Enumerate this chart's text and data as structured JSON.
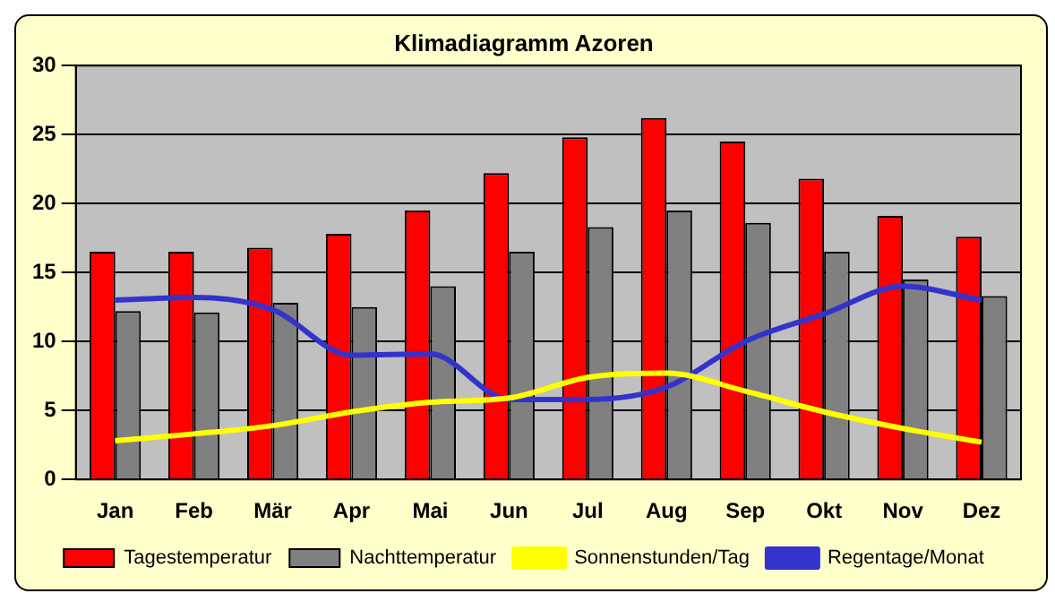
{
  "chart_data": {
    "type": "bar",
    "title": "Klimadiagramm Azoren",
    "categories": [
      "Jan",
      "Feb",
      "Mär",
      "Apr",
      "Mai",
      "Jun",
      "Jul",
      "Aug",
      "Sep",
      "Okt",
      "Nov",
      "Dez"
    ],
    "series": [
      {
        "name": "Tagestemperatur",
        "color": "#ff0000",
        "values": [
          16.5,
          16.5,
          16.8,
          17.8,
          19.5,
          22.2,
          24.8,
          26.2,
          24.5,
          21.8,
          19.1,
          17.6
        ]
      },
      {
        "name": "Nachttemperatur",
        "color": "#808080",
        "values": [
          12.2,
          12.1,
          12.8,
          12.5,
          14,
          16.5,
          18.3,
          19.5,
          18.6,
          16.5,
          14.5,
          13.3
        ]
      },
      {
        "name": "Sonnenstunden/Tag",
        "type": "line",
        "color": "#ffff00",
        "values": [
          2.8,
          3.3,
          3.9,
          4.9,
          5.6,
          5.9,
          7.4,
          7.7,
          6.4,
          4.9,
          3.7,
          2.7
        ]
      },
      {
        "name": "Regentage/Monat",
        "type": "line",
        "color": "#3333cc",
        "values": [
          13,
          13.2,
          12.3,
          9,
          9.1,
          5.8,
          5.8,
          6.7,
          10,
          12,
          14,
          13
        ]
      }
    ],
    "ylim": [
      0,
      30
    ],
    "yticks": [
      0,
      5,
      10,
      15,
      20,
      25,
      30
    ],
    "grid": "y",
    "legend": "bottom",
    "marker": "none",
    "line_style": "solid"
  }
}
